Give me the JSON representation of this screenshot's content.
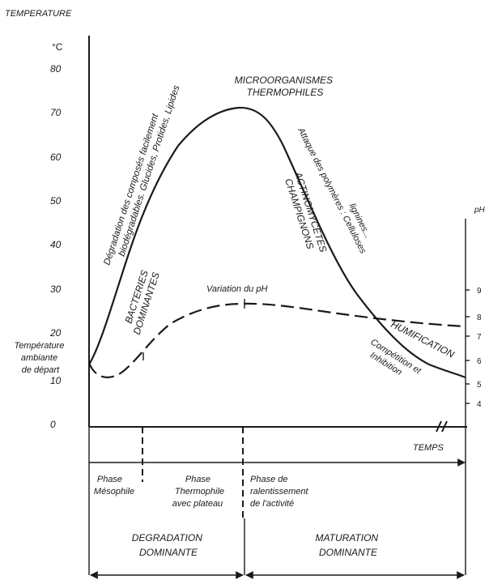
{
  "axes": {
    "y_title": "TEMPERATURE",
    "y_unit": "°C",
    "y_ticks": [
      "0",
      "10",
      "20",
      "30",
      "40",
      "50",
      "60",
      "70",
      "80"
    ],
    "ph_unit": "pH",
    "ph_ticks": [
      "4",
      "5",
      "6",
      "7",
      "8",
      "9"
    ],
    "x_title": "TEMPS"
  },
  "start_label": [
    "Température",
    "ambiante",
    "de départ"
  ],
  "annotations": {
    "degradation_line1": "Dégradation des composés facilement",
    "degradation_line2": "biodégradables. Glucides, Protides, Lipides",
    "bacteries_line1": "BACTERIES",
    "bacteries_line2": "DOMINANTES",
    "thermo_line1": "MICROORGANISMES",
    "thermo_line2": "THERMOPHILES",
    "champ_line1": "CHAMPIGNONS",
    "champ_line2": "ACTINOMYCETES",
    "attaque_line1": "Attaque des polymères : Celluloses",
    "attaque_line2": "lignines...",
    "ph_variation": "Variation du pH",
    "humification": "HUMIFICATION",
    "competition_line1": "Compétition   et",
    "competition_line2": "Inhibition"
  },
  "phases": [
    {
      "line1": "Phase",
      "line2": "Mésophile",
      "line3": ""
    },
    {
      "line1": "Phase",
      "line2": "Thermophile",
      "line3": "avec plateau"
    },
    {
      "line1": "Phase de",
      "line2": "ralentissement",
      "line3": "de l'activité"
    }
  ],
  "stages": [
    {
      "line1": "DEGRADATION",
      "line2": "DOMINANTE"
    },
    {
      "line1": "MATURATION",
      "line2": "DOMINANTE"
    }
  ]
}
